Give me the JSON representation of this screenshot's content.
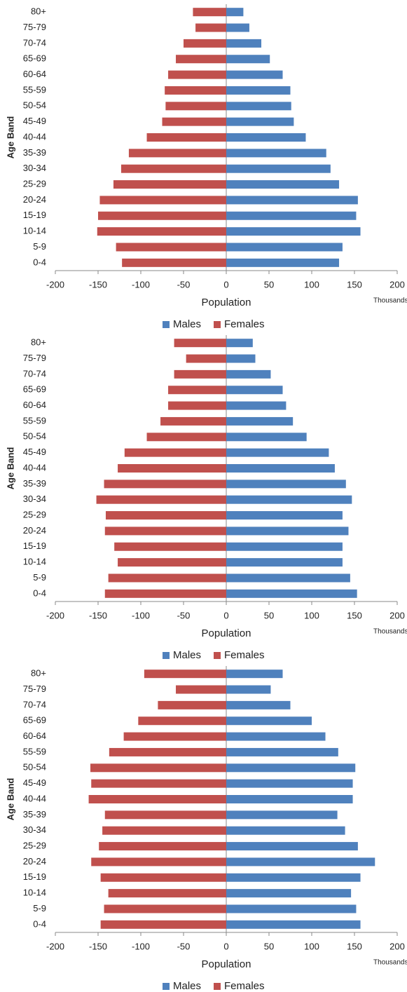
{
  "chart_data": [
    {
      "type": "bar",
      "orientation": "horizontal",
      "x_label": "Population",
      "y_label": "Age Band",
      "annotation": "Thousands",
      "categories": [
        "0-4",
        "5-9",
        "10-14",
        "15-19",
        "20-24",
        "25-29",
        "30-34",
        "35-39",
        "40-44",
        "45-49",
        "50-54",
        "55-59",
        "60-64",
        "65-69",
        "70-74",
        "75-79",
        "80+"
      ],
      "series": [
        {
          "name": "Males",
          "color": "#4f81bd",
          "values": [
            132,
            136,
            157,
            152,
            154,
            132,
            122,
            117,
            93,
            79,
            76,
            75,
            66,
            51,
            41,
            27,
            20
          ]
        },
        {
          "name": "Females",
          "color": "#c0504d",
          "values": [
            -122,
            -129,
            -151,
            -150,
            -148,
            -132,
            -123,
            -114,
            -93,
            -75,
            -71,
            -72,
            -68,
            -59,
            -50,
            -36,
            -39
          ]
        }
      ],
      "xlim": [
        -200,
        200
      ],
      "xticks": [
        -200,
        -150,
        -100,
        -50,
        0,
        50,
        100,
        150,
        200
      ],
      "legend": "bottom"
    },
    {
      "type": "bar",
      "orientation": "horizontal",
      "x_label": "Population",
      "y_label": "Age Band",
      "annotation": "Thousands",
      "categories": [
        "0-4",
        "5-9",
        "10-14",
        "15-19",
        "20-24",
        "25-29",
        "30-34",
        "35-39",
        "40-44",
        "45-49",
        "50-54",
        "55-59",
        "60-64",
        "65-69",
        "70-74",
        "75-79",
        "80+"
      ],
      "series": [
        {
          "name": "Males",
          "color": "#4f81bd",
          "values": [
            153,
            145,
            136,
            136,
            143,
            136,
            147,
            140,
            127,
            120,
            94,
            78,
            70,
            66,
            52,
            34,
            31
          ]
        },
        {
          "name": "Females",
          "color": "#c0504d",
          "values": [
            -142,
            -138,
            -127,
            -131,
            -142,
            -141,
            -152,
            -143,
            -127,
            -119,
            -93,
            -77,
            -68,
            -68,
            -61,
            -47,
            -61
          ]
        }
      ],
      "xlim": [
        -200,
        200
      ],
      "xticks": [
        -200,
        -150,
        -100,
        -50,
        0,
        50,
        100,
        150,
        200
      ],
      "legend": "bottom"
    },
    {
      "type": "bar",
      "orientation": "horizontal",
      "x_label": "Population",
      "y_label": "Age Band",
      "annotation": "Thousands",
      "categories": [
        "0-4",
        "5-9",
        "10-14",
        "15-19",
        "20-24",
        "25-29",
        "30-34",
        "35-39",
        "40-44",
        "45-49",
        "50-54",
        "55-59",
        "60-64",
        "65-69",
        "70-74",
        "75-79",
        "80+"
      ],
      "series": [
        {
          "name": "Males",
          "color": "#4f81bd",
          "values": [
            157,
            152,
            146,
            157,
            174,
            154,
            139,
            130,
            148,
            148,
            151,
            131,
            116,
            100,
            75,
            52,
            66
          ]
        },
        {
          "name": "Females",
          "color": "#c0504d",
          "values": [
            -147,
            -143,
            -138,
            -147,
            -158,
            -149,
            -145,
            -142,
            -161,
            -158,
            -159,
            -137,
            -120,
            -103,
            -80,
            -59,
            -96
          ]
        }
      ],
      "xlim": [
        -200,
        200
      ],
      "xticks": [
        -200,
        -150,
        -100,
        -50,
        0,
        50,
        100,
        150,
        200
      ],
      "legend": "bottom"
    }
  ]
}
